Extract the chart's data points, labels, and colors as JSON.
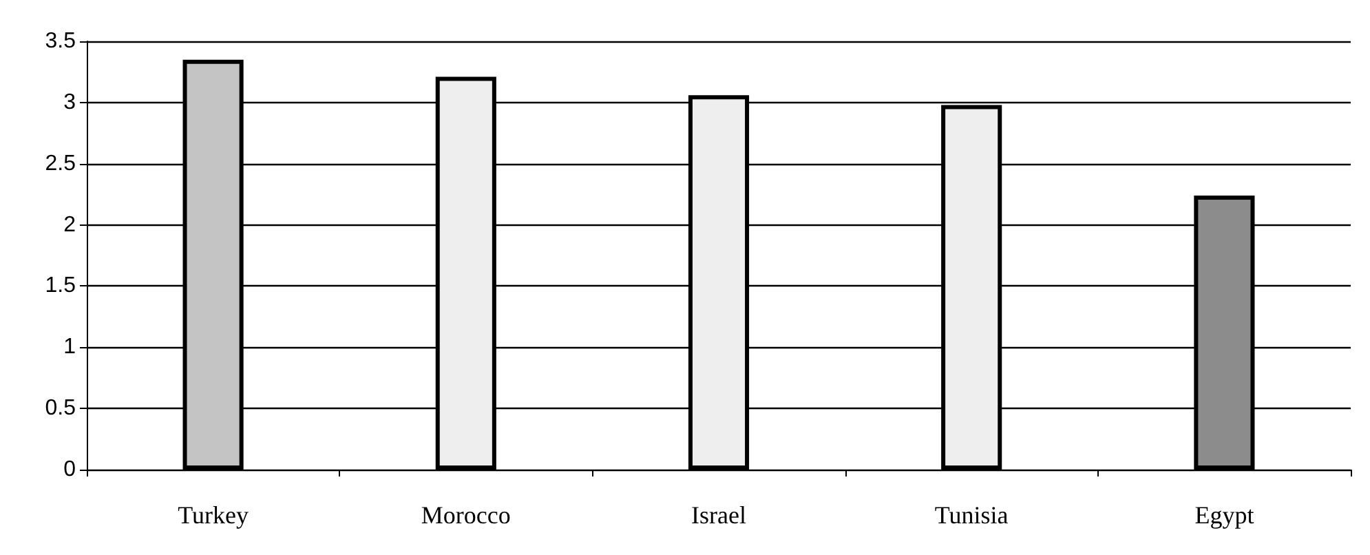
{
  "chart_data": {
    "type": "bar",
    "categories": [
      "Turkey",
      "Morocco",
      "Israel",
      "Tunisia",
      "Egypt"
    ],
    "values": [
      3.35,
      3.21,
      3.06,
      2.98,
      2.24
    ],
    "colors": [
      "#c4c4c4",
      "#eeeeee",
      "#eeeeee",
      "#eeeeee",
      "#8c8c8c"
    ],
    "ylim": [
      0,
      3.5
    ],
    "yticks": [
      0,
      0.5,
      1,
      1.5,
      2,
      2.5,
      3,
      3.5
    ],
    "grid": "y"
  }
}
